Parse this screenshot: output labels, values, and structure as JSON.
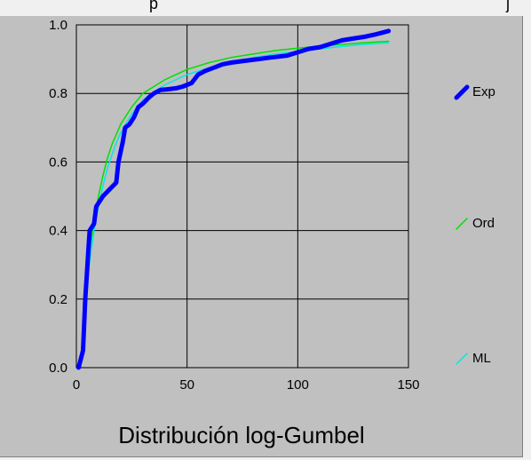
{
  "header_fragment": {
    "left": "p",
    "right": "j"
  },
  "chart_data": {
    "type": "line",
    "title": "Distribución log-Gumbel",
    "xlim": [
      0,
      150
    ],
    "ylim": [
      0,
      1
    ],
    "x_ticks": [
      "0",
      "50",
      "100",
      "150"
    ],
    "y_ticks": [
      "0.0",
      "0.2",
      "0.4",
      "0.6",
      "0.8",
      "1.0"
    ],
    "grid": true,
    "legend_position": "right",
    "series": [
      {
        "name": "Exp",
        "color": "#0000ff",
        "style": "thick-step",
        "x": [
          1,
          3,
          4,
          5,
          5.5,
          6,
          7,
          8,
          9,
          10,
          12,
          15,
          18,
          19,
          20,
          21,
          22,
          24,
          26,
          28,
          30,
          33,
          35,
          38,
          41,
          45,
          48,
          52,
          55,
          58,
          62,
          66,
          70,
          76,
          82,
          88,
          95,
          100,
          105,
          110,
          115,
          120,
          125,
          130,
          135,
          141
        ],
        "y": [
          0.0,
          0.05,
          0.2,
          0.3,
          0.35,
          0.4,
          0.41,
          0.42,
          0.47,
          0.48,
          0.5,
          0.52,
          0.54,
          0.6,
          0.63,
          0.66,
          0.7,
          0.71,
          0.73,
          0.76,
          0.77,
          0.79,
          0.8,
          0.81,
          0.812,
          0.815,
          0.82,
          0.83,
          0.855,
          0.865,
          0.875,
          0.885,
          0.89,
          0.895,
          0.9,
          0.905,
          0.91,
          0.92,
          0.93,
          0.935,
          0.945,
          0.955,
          0.96,
          0.965,
          0.972,
          0.982
        ]
      },
      {
        "name": "Ord",
        "color": "#00e000",
        "style": "thin",
        "x": [
          1,
          2,
          3,
          4,
          5,
          6,
          8,
          10,
          12,
          14,
          16,
          18,
          20,
          25,
          30,
          35,
          40,
          50,
          60,
          70,
          80,
          90,
          100,
          110,
          120,
          130,
          141
        ],
        "y": [
          0.0,
          0.03,
          0.1,
          0.2,
          0.28,
          0.34,
          0.43,
          0.5,
          0.56,
          0.61,
          0.65,
          0.68,
          0.71,
          0.76,
          0.8,
          0.82,
          0.84,
          0.87,
          0.89,
          0.905,
          0.915,
          0.925,
          0.932,
          0.938,
          0.943,
          0.948,
          0.952
        ]
      },
      {
        "name": "ML",
        "color": "#00e8e8",
        "style": "thin",
        "x": [
          1,
          2,
          3,
          4,
          5,
          6,
          8,
          10,
          12,
          14,
          16,
          18,
          20,
          25,
          30,
          35,
          40,
          50,
          60,
          70,
          80,
          90,
          100,
          110,
          120,
          130,
          141
        ],
        "y": [
          0.0,
          0.02,
          0.08,
          0.17,
          0.25,
          0.31,
          0.4,
          0.47,
          0.53,
          0.58,
          0.62,
          0.655,
          0.685,
          0.74,
          0.78,
          0.805,
          0.825,
          0.855,
          0.875,
          0.892,
          0.905,
          0.915,
          0.922,
          0.93,
          0.937,
          0.943,
          0.948
        ]
      }
    ]
  }
}
